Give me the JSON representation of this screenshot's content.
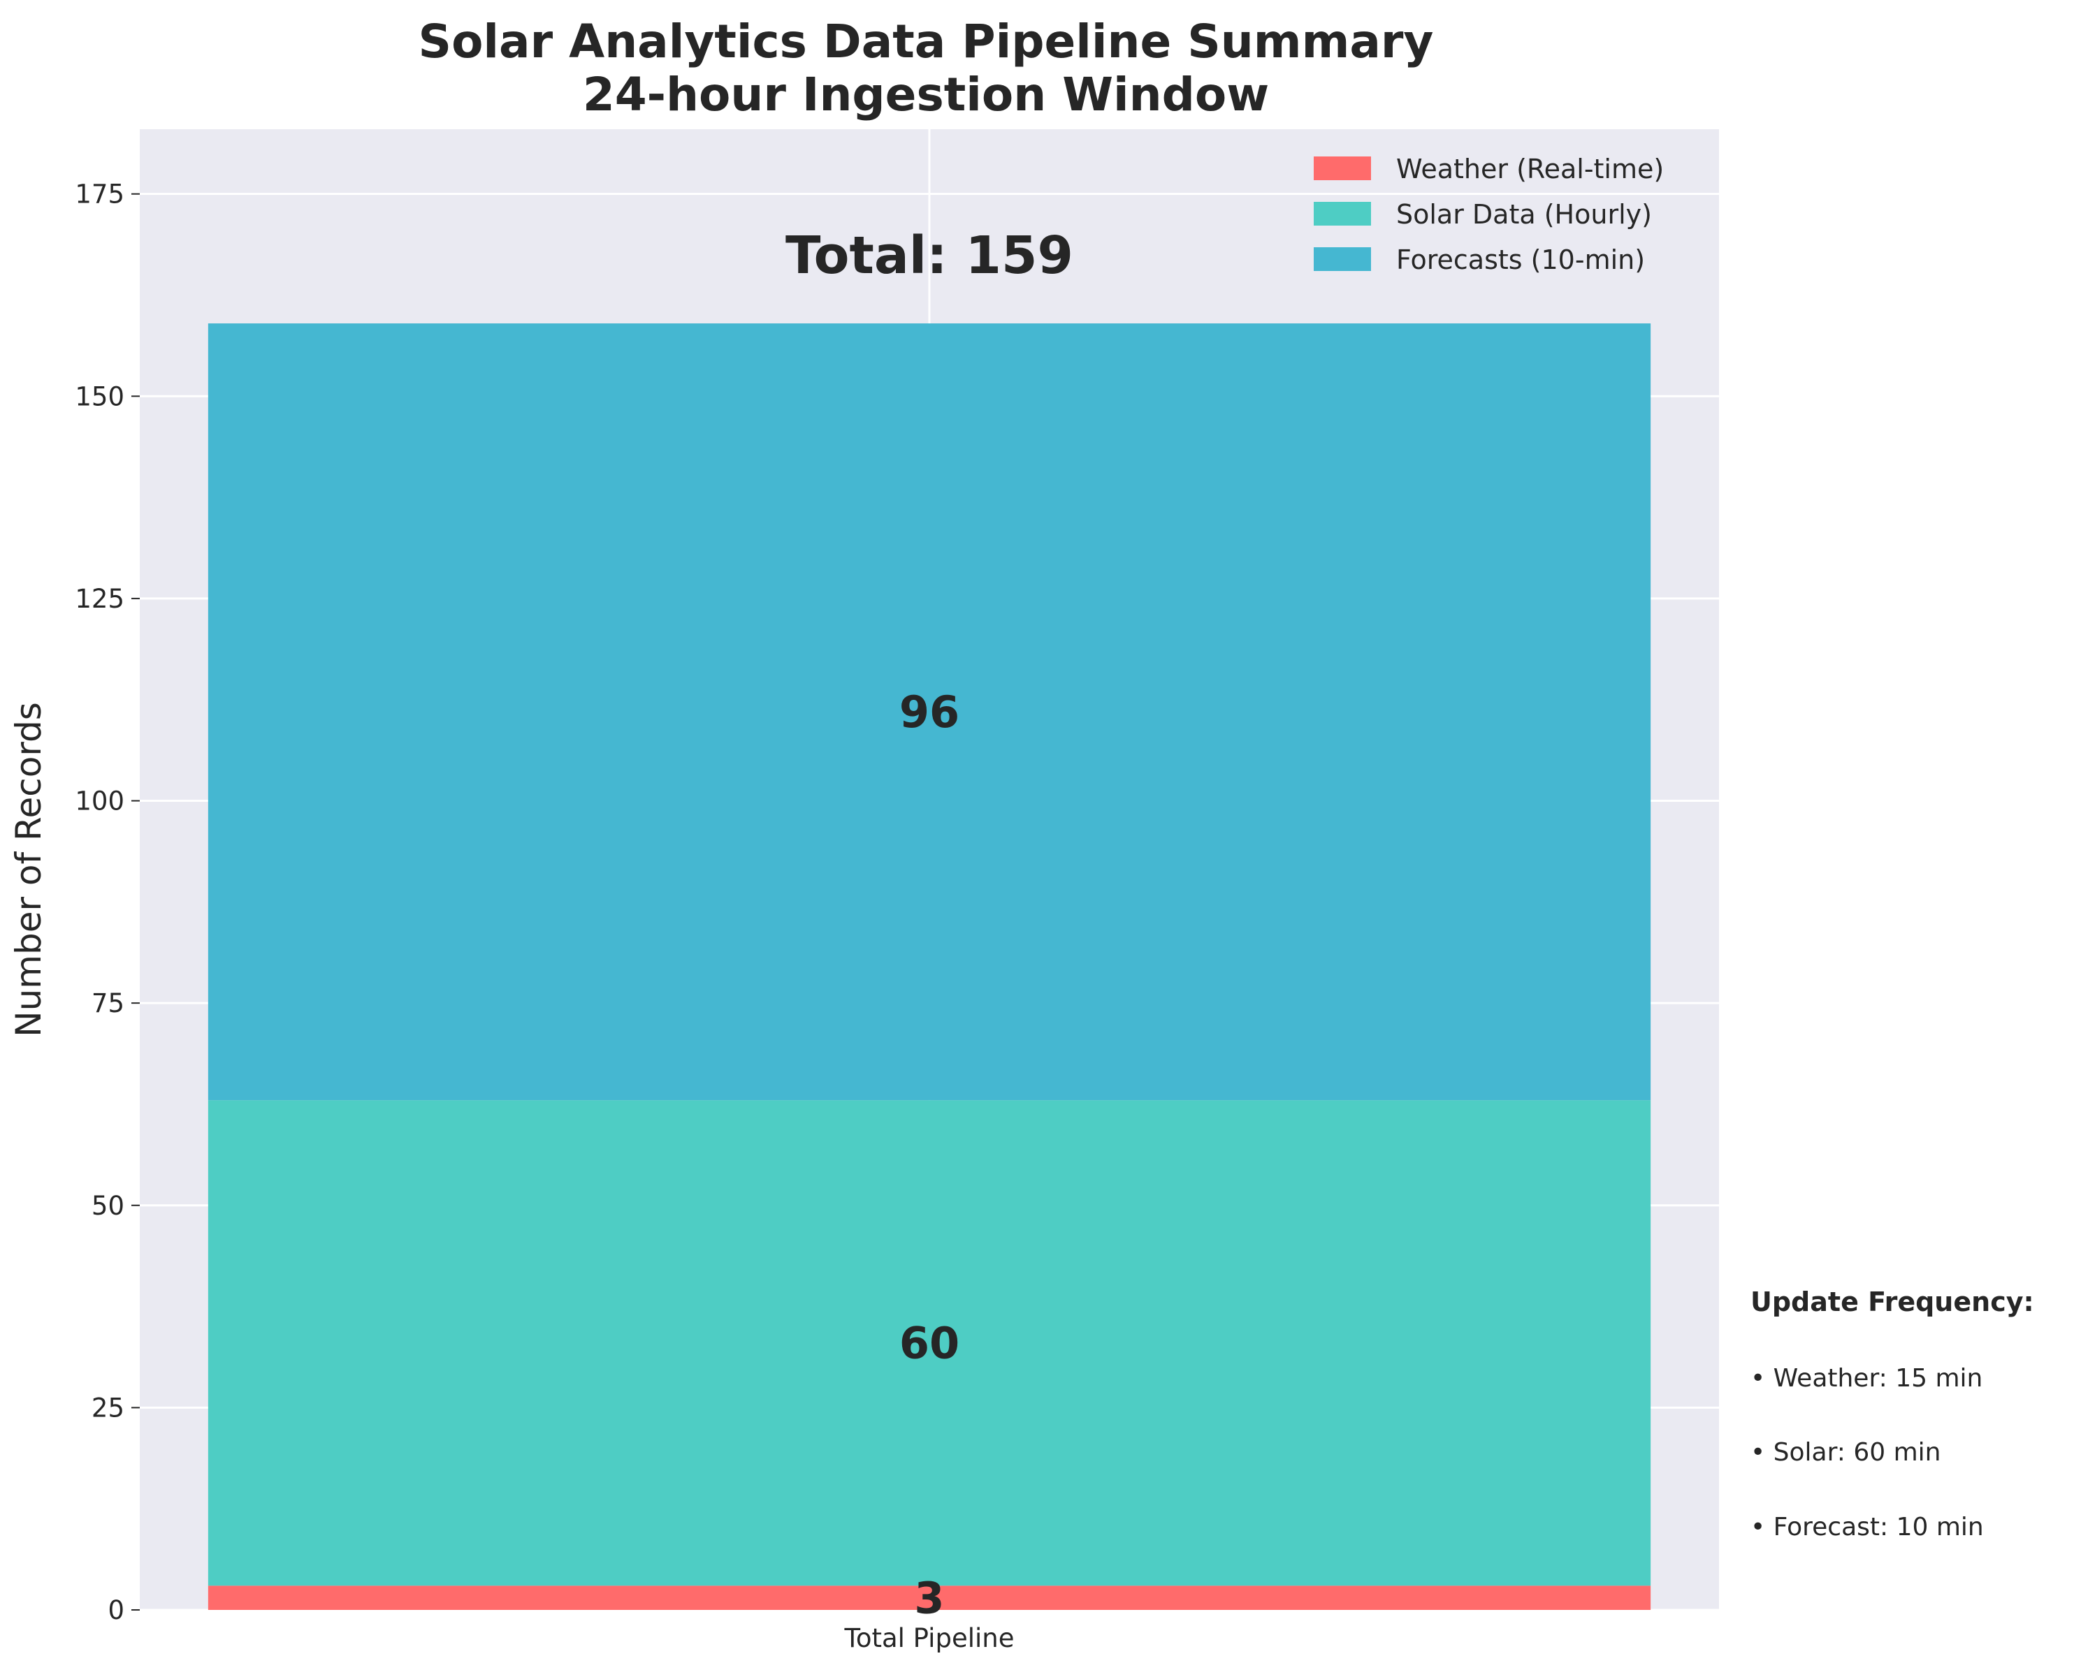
{
  "chart_data": {
    "type": "bar",
    "stacked": true,
    "title": "Solar Analytics Data Pipeline Summary",
    "subtitle": "24-hour Ingestion Window",
    "xlabel": "",
    "ylabel": "Number of Records",
    "categories": [
      "Total Pipeline"
    ],
    "ylim": [
      0,
      183
    ],
    "yticks": [
      0,
      25,
      50,
      75,
      100,
      125,
      150,
      175
    ],
    "grid": true,
    "legend_position": "top-right",
    "series": [
      {
        "name": "Weather (Real-time)",
        "values": [
          3
        ],
        "color": "#ff6b6b"
      },
      {
        "name": "Solar Data (Hourly)",
        "values": [
          60
        ],
        "color": "#4ecdc4"
      },
      {
        "name": "Forecasts (10-min)",
        "values": [
          96
        ],
        "color": "#45b7d1"
      }
    ],
    "total_label": "Total: 159",
    "annotation": {
      "heading": "Update Frequency:",
      "items": [
        "• Weather: 15 min",
        "• Solar: 60 min",
        "• Forecast: 10 min"
      ]
    }
  },
  "colors": {
    "plot_background": "#eaeaf2",
    "grid": "#ffffff",
    "text": "#262626"
  }
}
